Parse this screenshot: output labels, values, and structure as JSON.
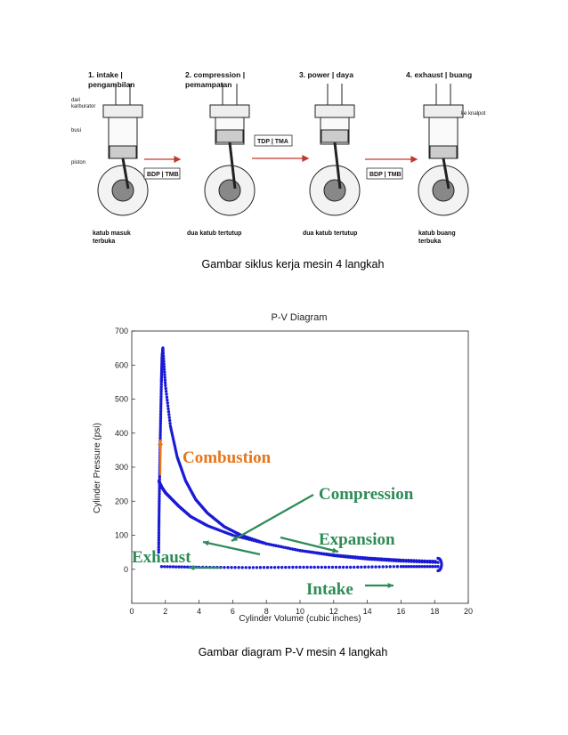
{
  "engine_diagram": {
    "stages": [
      {
        "title": "1. intake |",
        "title2": "pengambilan",
        "bottom": "katub masuk",
        "bottom2": "terbuka"
      },
      {
        "title": "2. compression |",
        "title2": "pemampatan",
        "bottom": "dua katub tertutup",
        "bottom2": ""
      },
      {
        "title": "3. power | daya",
        "title2": "",
        "bottom": "dua katub tertutup",
        "bottom2": ""
      },
      {
        "title": "4. exhaust | buang",
        "title2": "",
        "bottom": "katub buang",
        "bottom2": "terbuka"
      }
    ],
    "side_labels": {
      "dari": "dari",
      "karburator": "karburator",
      "busi": "busi",
      "piston": "piston",
      "knalpot": "ke knalpot"
    },
    "arrow_labels": {
      "bdp1": "BDP | TMB",
      "tdp": "TDP | TMA",
      "bdp2": "BDP | TMB"
    }
  },
  "captions": {
    "figure1": "Gambar siklus kerja mesin 4 langkah",
    "figure2": "Gambar diagram P-V mesin 4 langkah"
  },
  "chart_data": {
    "type": "scatter",
    "title": "P-V Diagram",
    "xlabel": "Cylinder Volume (cubic inches)",
    "ylabel": "Cylinder Pressure (psi)",
    "xlim": [
      0,
      20
    ],
    "ylim": [
      -100,
      700
    ],
    "xticks": [
      "0",
      "2",
      "4",
      "6",
      "8",
      "10",
      "12",
      "14",
      "16",
      "18",
      "20"
    ],
    "yticks": [
      "0",
      "100",
      "200",
      "300",
      "400",
      "500",
      "600",
      "700"
    ],
    "series": [
      {
        "name": "Combustion",
        "x": [
          1.6,
          1.62,
          1.65,
          1.68,
          1.72,
          1.76,
          1.8,
          1.85
        ],
        "y": [
          50,
          150,
          250,
          350,
          450,
          550,
          620,
          650
        ]
      },
      {
        "name": "Expansion",
        "x": [
          1.85,
          2,
          2.3,
          2.7,
          3.2,
          3.8,
          4.5,
          5.5,
          6.5,
          8,
          10,
          12,
          14,
          16,
          18.2
        ],
        "y": [
          650,
          540,
          420,
          330,
          260,
          205,
          165,
          125,
          100,
          75,
          55,
          42,
          33,
          27,
          23
        ]
      },
      {
        "name": "Compression",
        "x": [
          18.2,
          16,
          14,
          12,
          10,
          8,
          6,
          4.5,
          3.5,
          2.8,
          2.3,
          2,
          1.8,
          1.6
        ],
        "y": [
          20,
          24,
          30,
          40,
          55,
          75,
          100,
          128,
          155,
          185,
          210,
          225,
          240,
          260
        ]
      },
      {
        "name": "Exhaust/Intake",
        "x": [
          18.2,
          16,
          13,
          10,
          7,
          4,
          1.6
        ],
        "y": [
          8,
          8,
          6,
          6,
          5,
          6,
          8
        ]
      }
    ],
    "annotations": [
      {
        "text": "Combustion",
        "color": "#e8751a"
      },
      {
        "text": "Compression",
        "color": "#2e8b57"
      },
      {
        "text": "Expansion",
        "color": "#2e8b57"
      },
      {
        "text": "Exhaust",
        "color": "#2e8b57"
      },
      {
        "text": "Intake",
        "color": "#2e8b57"
      }
    ],
    "colors": {
      "points": "#1a1ad6",
      "orange": "#e8751a",
      "green": "#2e8b57"
    }
  }
}
